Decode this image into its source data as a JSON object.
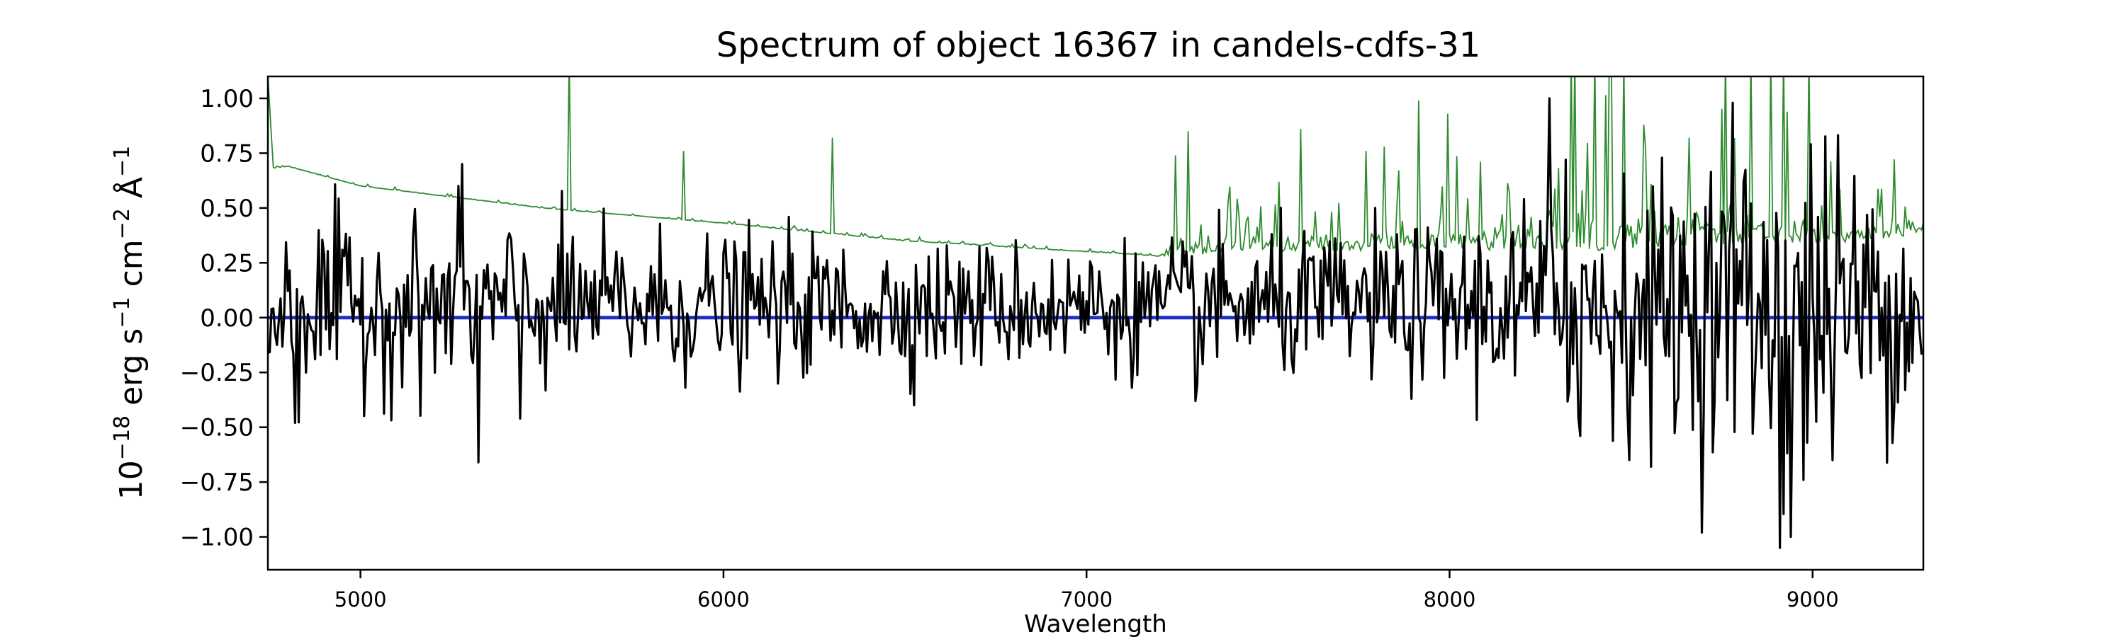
{
  "chart_data": {
    "type": "line",
    "title": "Spectrum of object 16367 in candels-cdfs-31",
    "xlabel": "Wavelength",
    "ylabel": {
      "base": "10",
      "exp": "−18",
      "erg": " erg s",
      "s_exp": "−1",
      "cm": " cm",
      "cm_exp": "−2",
      "ang": " Å",
      "ang_exp": "−1"
    },
    "xlim": [
      4745,
      9305
    ],
    "ylim": [
      -1.15,
      1.1
    ],
    "xticks": [
      5000,
      6000,
      7000,
      8000,
      9000
    ],
    "xtick_labels": [
      "5000",
      "6000",
      "7000",
      "8000",
      "9000"
    ],
    "yticks": [
      -1.0,
      -0.75,
      -0.5,
      -0.25,
      0.0,
      0.25,
      0.5,
      0.75,
      1.0
    ],
    "ytick_labels": [
      "−1.00",
      "−0.75",
      "−0.50",
      "−0.25",
      "0.00",
      "0.25",
      "0.50",
      "0.75",
      "1.00"
    ],
    "grid": false,
    "series": [
      {
        "role": "flux",
        "color": "#000000",
        "x_start": 4745,
        "x_end": 9305,
        "step": 5,
        "noise_envelope": {
          "x": [
            4745,
            5000,
            6000,
            7000,
            7500,
            8000,
            8300,
            8700,
            9000,
            9305
          ],
          "sigma": [
            0.22,
            0.2,
            0.16,
            0.14,
            0.16,
            0.18,
            0.26,
            0.32,
            0.42,
            0.2
          ]
        },
        "features": [
          {
            "x": 5280,
            "y": 0.7
          },
          {
            "x": 5325,
            "y": -0.66
          },
          {
            "x": 4820,
            "y": -0.48
          },
          {
            "x": 8275,
            "y": 1.0
          },
          {
            "x": 8360,
            "y": -0.54
          },
          {
            "x": 8780,
            "y": 0.98
          },
          {
            "x": 8910,
            "y": -1.05
          },
          {
            "x": 8940,
            "y": -1.0
          },
          {
            "x": 8975,
            "y": -0.74
          },
          {
            "x": 5440,
            "y": -0.46
          },
          {
            "x": 7300,
            "y": -0.38
          },
          {
            "x": 8320,
            "y": 0.72
          }
        ]
      },
      {
        "role": "error",
        "color": "#2e8b2e",
        "continuum": {
          "x": [
            4745,
            4760,
            4800,
            5000,
            5500,
            6000,
            6500,
            7000,
            7200,
            7500,
            8000,
            8500,
            8700,
            9000,
            9305
          ],
          "y": [
            1.1,
            0.68,
            0.69,
            0.6,
            0.5,
            0.43,
            0.35,
            0.3,
            0.28,
            0.3,
            0.31,
            0.3,
            0.33,
            0.33,
            0.38
          ]
        },
        "spikes": [
          {
            "x": 5575,
            "y": 1.2
          },
          {
            "x": 5890,
            "y": 0.76
          },
          {
            "x": 6300,
            "y": 0.82
          },
          {
            "x": 7245,
            "y": 0.74
          },
          {
            "x": 7280,
            "y": 0.85
          },
          {
            "x": 7590,
            "y": 0.86
          },
          {
            "x": 7820,
            "y": 0.78
          },
          {
            "x": 7915,
            "y": 0.99
          },
          {
            "x": 7995,
            "y": 0.93
          },
          {
            "x": 8345,
            "y": 1.2
          },
          {
            "x": 8400,
            "y": 1.2
          },
          {
            "x": 8440,
            "y": 1.2
          },
          {
            "x": 8760,
            "y": 1.2
          },
          {
            "x": 8830,
            "y": 1.2
          },
          {
            "x": 8885,
            "y": 1.2
          },
          {
            "x": 8920,
            "y": 1.2
          },
          {
            "x": 8990,
            "y": 1.2
          },
          {
            "x": 8660,
            "y": 0.82
          }
        ]
      },
      {
        "role": "model",
        "color": "#1f2ec4",
        "x": [
          4745,
          9305
        ],
        "y": [
          0.0,
          0.0
        ]
      }
    ]
  }
}
